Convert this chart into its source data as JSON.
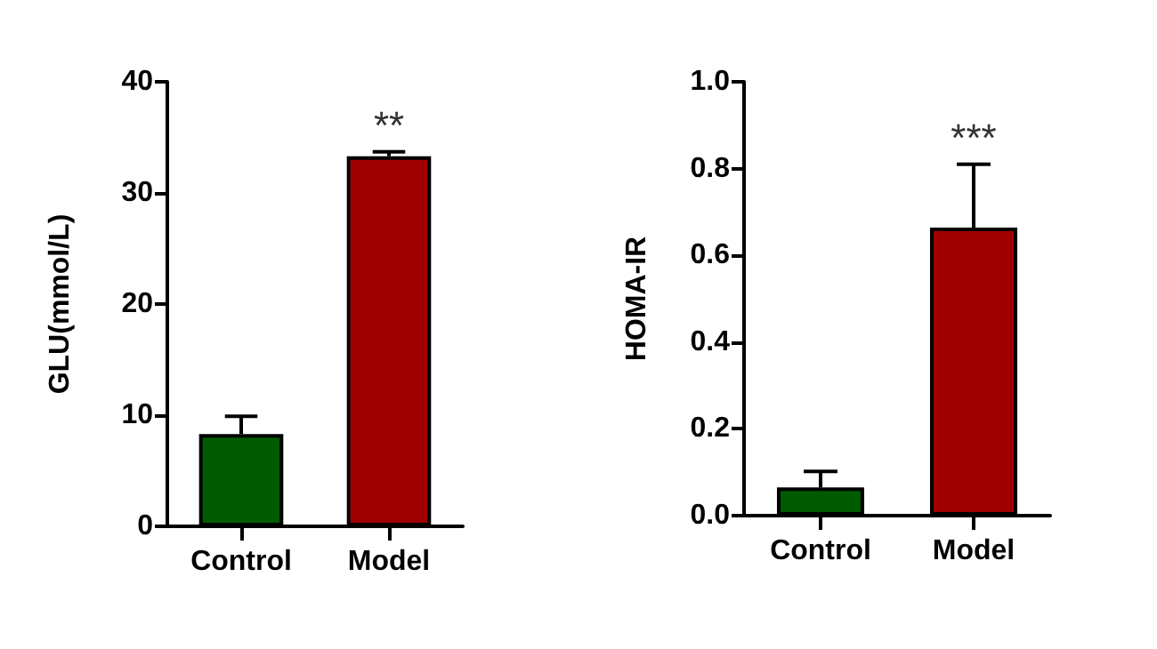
{
  "chart_data": [
    {
      "type": "bar",
      "ylabel": "GLU(mmol/L)",
      "categories": [
        "Control",
        "Model"
      ],
      "values": [
        8.3,
        33.3
      ],
      "colors": [
        "#005a00",
        "#a00000"
      ],
      "errors": [
        [
          8.3,
          9.9
        ],
        [
          33.3,
          33.7
        ]
      ],
      "ylim": [
        0,
        40
      ],
      "yticks": [
        0,
        10,
        20,
        30,
        40
      ],
      "grid": false,
      "annotations": [
        {
          "text": "**",
          "x": "Model",
          "y": 33.7
        }
      ]
    },
    {
      "type": "bar",
      "ylabel": "HOMA-IR",
      "categories": [
        "Control",
        "Model"
      ],
      "values": [
        0.065,
        0.664
      ],
      "colors": [
        "#005a00",
        "#a00000"
      ],
      "errors": [
        [
          0.065,
          0.102
        ],
        [
          0.664,
          0.81
        ]
      ],
      "ylim": [
        0,
        1
      ],
      "yticks": [
        {
          "value": 0,
          "label": "0.0"
        },
        0.2,
        0.4,
        0.6,
        0.8,
        {
          "value": 1,
          "label": "1.0"
        }
      ],
      "grid": false,
      "annotations": [
        {
          "text": "***",
          "x": "Model",
          "y": 0.81
        }
      ]
    }
  ]
}
